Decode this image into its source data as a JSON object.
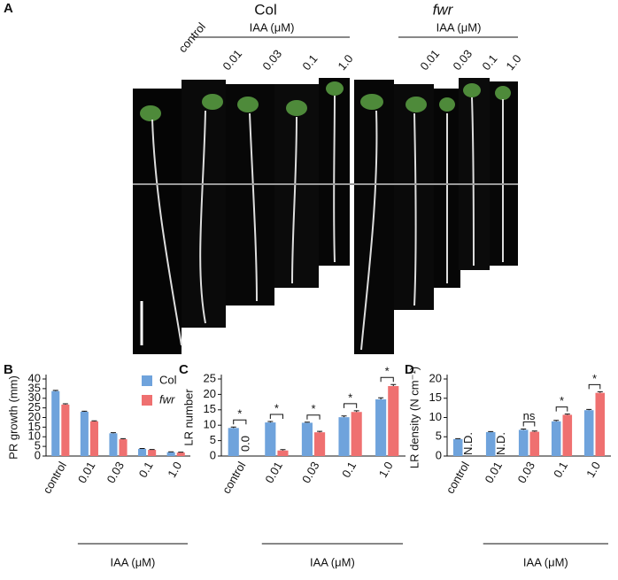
{
  "panel_a": {
    "label": "A",
    "groups": [
      {
        "name": "Col",
        "treatment": "IAA (μM)",
        "columns": [
          "control",
          "0.01",
          "0.03",
          "0.1",
          "1.0"
        ]
      },
      {
        "name": "fwr",
        "treatment": "IAA (μM)",
        "columns": [
          "0.01",
          "0.03",
          "0.1",
          "1.0"
        ]
      }
    ]
  },
  "chart_data": [
    {
      "type": "bar",
      "panel": "B",
      "y_label": "PR growth (mm)",
      "x_label": "IAA (μM)",
      "categories": [
        "control",
        "0.01",
        "0.03",
        "0.1",
        "1.0"
      ],
      "ylim": [
        0,
        40
      ],
      "yticks": [
        0,
        5,
        10,
        15,
        20,
        25,
        30,
        35,
        40
      ],
      "legend": "top-right",
      "series": [
        {
          "name": "Col",
          "color": "#6fa3dc",
          "values": [
            33.7,
            23.0,
            11.8,
            3.7,
            2.0
          ],
          "errors": [
            0.4,
            0.3,
            0.3,
            0.2,
            0.2
          ]
        },
        {
          "name": "fwr",
          "color": "#ef7070",
          "values": [
            26.7,
            18.0,
            8.7,
            3.2,
            1.8
          ],
          "errors": [
            0.4,
            0.3,
            0.3,
            0.2,
            0.2
          ]
        }
      ]
    },
    {
      "type": "bar",
      "panel": "C",
      "y_label": "LR number",
      "x_label": "IAA (μM)",
      "categories": [
        "control",
        "0.01",
        "0.03",
        "0.1",
        "1.0"
      ],
      "ylim": [
        0,
        25
      ],
      "yticks": [
        0,
        5,
        10,
        15,
        20,
        25
      ],
      "significance": [
        "*",
        "*",
        "*",
        "*",
        "*"
      ],
      "series": [
        {
          "name": "Col",
          "color": "#6fa3dc",
          "values": [
            9.1,
            10.9,
            10.8,
            12.6,
            18.4
          ],
          "errors": [
            0.3,
            0.3,
            0.2,
            0.4,
            0.5
          ]
        },
        {
          "name": "fwr",
          "color": "#ef7070",
          "values": [
            0,
            1.8,
            7.7,
            14.3,
            22.7
          ],
          "errors": [
            0,
            0.3,
            0.3,
            0.4,
            0.5
          ],
          "value_labels": [
            "0.0",
            null,
            null,
            null,
            null
          ]
        }
      ]
    },
    {
      "type": "bar",
      "panel": "D",
      "y_label": "LR density (N cm⁻¹)",
      "x_label": "IAA (μM)",
      "categories": [
        "control",
        "0.01",
        "0.03",
        "0.1",
        "1.0"
      ],
      "ylim": [
        0,
        20
      ],
      "yticks": [
        0,
        5,
        10,
        15,
        20
      ],
      "significance": [
        null,
        null,
        "ns",
        "*",
        "*"
      ],
      "series": [
        {
          "name": "Col",
          "color": "#6fa3dc",
          "values": [
            4.4,
            6.2,
            6.8,
            9.0,
            11.9
          ],
          "errors": [
            0.1,
            0.15,
            0.2,
            0.25,
            0.2
          ]
        },
        {
          "name": "fwr",
          "color": "#ef7070",
          "values": [
            null,
            null,
            6.3,
            10.7,
            16.4
          ],
          "errors": [
            null,
            null,
            0.2,
            0.2,
            0.3
          ],
          "value_labels": [
            "N.D.",
            "N.D.",
            null,
            null,
            null
          ]
        }
      ]
    }
  ]
}
